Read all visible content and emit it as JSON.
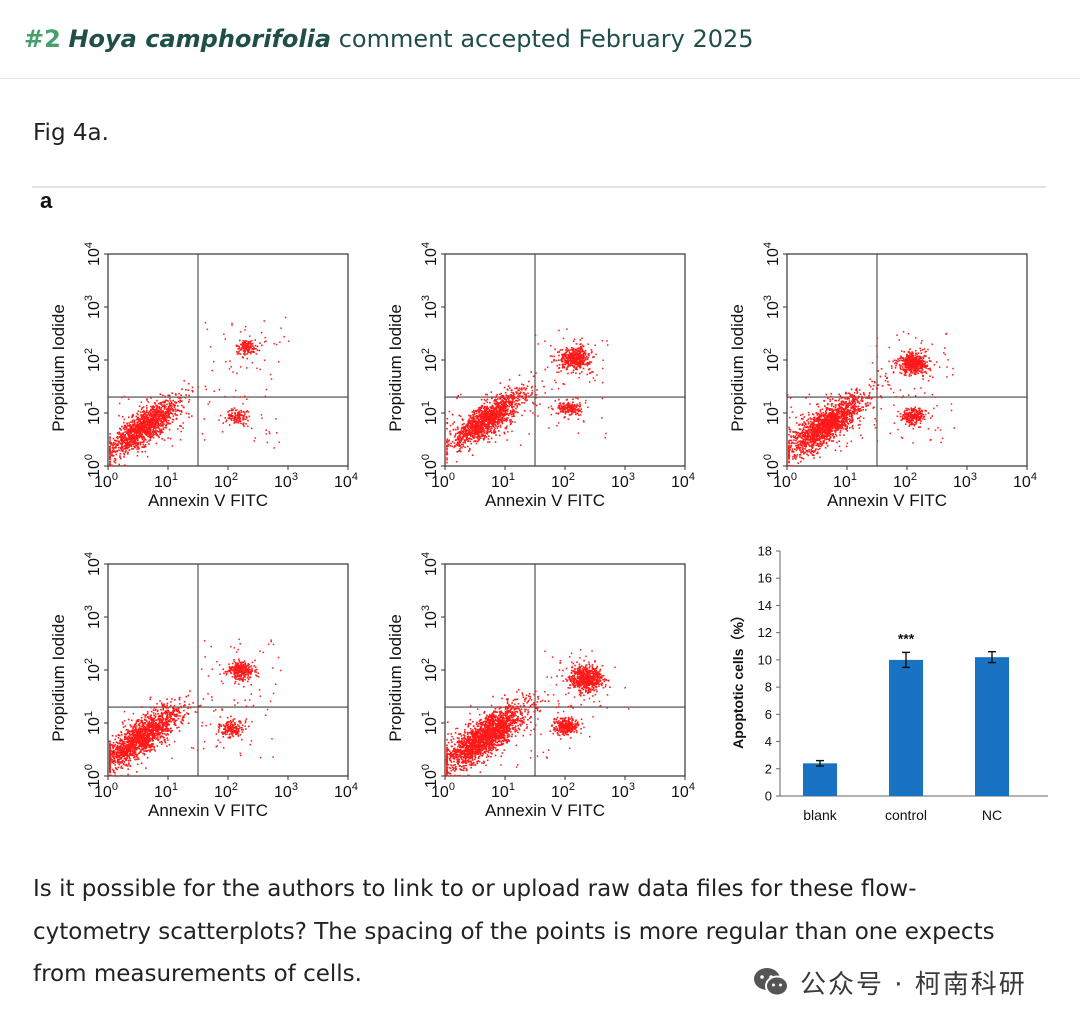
{
  "header": {
    "comment_number": "#2",
    "species": "Hoya camphorifolia",
    "status": "comment accepted February 2025"
  },
  "figure_caption": "Fig 4a.",
  "figure": {
    "panel_letter": "a",
    "scatter_panels": [
      {
        "xlabel": "Annexin V FITC",
        "ylabel": "Propidium Iodide",
        "clusters": [
          {
            "q": "LL",
            "lx": 0.6,
            "ly": 0.75,
            "n": 1300,
            "s": 0.28
          },
          {
            "q": "UR",
            "lx": 2.3,
            "ly": 2.25,
            "n": 130,
            "s": 0.09
          },
          {
            "q": "LR",
            "lx": 2.15,
            "ly": 0.95,
            "n": 110,
            "s": 0.09
          }
        ]
      },
      {
        "xlabel": "Annexin V FITC",
        "ylabel": "Propidium Iodide",
        "clusters": [
          {
            "q": "LL",
            "lx": 0.7,
            "ly": 0.9,
            "n": 1300,
            "s": 0.28
          },
          {
            "q": "UR",
            "lx": 2.15,
            "ly": 2.05,
            "n": 420,
            "s": 0.13
          },
          {
            "q": "LR",
            "lx": 2.05,
            "ly": 1.1,
            "n": 160,
            "s": 0.09
          }
        ]
      },
      {
        "xlabel": "Annexin V FITC",
        "ylabel": "Propidium Iodide",
        "clusters": [
          {
            "q": "LL",
            "lx": 0.65,
            "ly": 0.8,
            "n": 1500,
            "s": 0.3
          },
          {
            "q": "UR",
            "lx": 2.1,
            "ly": 1.95,
            "n": 420,
            "s": 0.13
          },
          {
            "q": "LR",
            "lx": 2.1,
            "ly": 0.95,
            "n": 220,
            "s": 0.1
          }
        ]
      },
      {
        "xlabel": "Annexin V FITC",
        "ylabel": "Propidium Iodide",
        "clusters": [
          {
            "q": "LL",
            "lx": 0.55,
            "ly": 0.75,
            "n": 1500,
            "s": 0.3
          },
          {
            "q": "UR",
            "lx": 2.2,
            "ly": 2.0,
            "n": 280,
            "s": 0.11
          },
          {
            "q": "LR",
            "lx": 2.05,
            "ly": 0.9,
            "n": 170,
            "s": 0.1
          }
        ]
      },
      {
        "xlabel": "Annexin V FITC",
        "ylabel": "Propidium Iodide",
        "clusters": [
          {
            "q": "LL",
            "lx": 0.65,
            "ly": 0.75,
            "n": 1900,
            "s": 0.32
          },
          {
            "q": "UR",
            "lx": 2.35,
            "ly": 1.85,
            "n": 620,
            "s": 0.14
          },
          {
            "q": "LR",
            "lx": 2.0,
            "ly": 0.95,
            "n": 280,
            "s": 0.1
          }
        ]
      }
    ],
    "tick_labels": [
      "10",
      "10",
      "10",
      "10",
      "10"
    ],
    "tick_exponents": [
      "0",
      "1",
      "2",
      "3",
      "4"
    ]
  },
  "chart_data": [
    {
      "type": "scatter",
      "description": "flow cytometry dot plots (5 panels), log axes 10^0–10^4, quadrant gates",
      "xlabel": "Annexin V FITC",
      "ylabel": "Propidium Iodide",
      "xlim": [
        1,
        10000
      ],
      "ylim": [
        1,
        10000
      ],
      "log": true
    },
    {
      "type": "bar",
      "categories": [
        "blank",
        "control",
        "NC"
      ],
      "values": [
        2.4,
        10.0,
        10.2
      ],
      "errors": [
        0.2,
        0.55,
        0.4
      ],
      "annotations": [
        {
          "category": "control",
          "text": "***"
        }
      ],
      "ylabel": "Apoptotic cells（%）",
      "ylim": [
        0,
        18
      ],
      "yticks": [
        0,
        2,
        4,
        6,
        8,
        10,
        12,
        14,
        16,
        18
      ],
      "bar_color": "#1a72c2"
    }
  ],
  "body_text": "Is it possible for the authors to link to or upload raw data files for these flow-cytometry scatterplots? The spacing of the points is more regular than one expects from measurements of cells.",
  "watermark": "公众号 · 柯南科研"
}
